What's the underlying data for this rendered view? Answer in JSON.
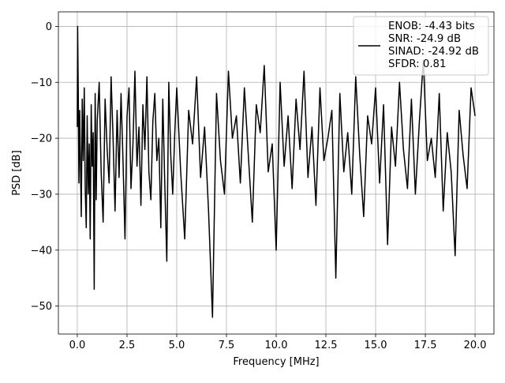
{
  "chart_data": {
    "type": "line",
    "title": "",
    "xlabel": "Frequency [MHz]",
    "ylabel": "PSD [dB]",
    "xlim": [
      -0.95,
      20.95
    ],
    "ylim": [
      -55.0,
      2.6
    ],
    "xticks": [
      0.0,
      2.5,
      5.0,
      7.5,
      10.0,
      12.5,
      15.0,
      17.5,
      20.0
    ],
    "xtick_labels": [
      "0.0",
      "2.5",
      "5.0",
      "7.5",
      "10.0",
      "12.5",
      "15.0",
      "17.5",
      "20.0"
    ],
    "yticks": [
      0,
      -10,
      -20,
      -30,
      -40,
      -50
    ],
    "ytick_labels": [
      "0",
      "−10",
      "−20",
      "−30",
      "−40",
      "−50"
    ],
    "grid": true,
    "legend_position": "top-right",
    "series": [
      {
        "name": "",
        "legend_lines": [
          "ENOB: -4.43 bits",
          "SNR: -24.9 dB",
          "SINAD: -24.92 dB",
          "SFDR: 0.81"
        ],
        "color": "#000000",
        "approximate": "dense noise floor between about -5 and -32 dB, centered near -18 dB",
        "x": [
          0.0,
          0.02,
          0.05,
          0.08,
          0.12,
          0.15,
          0.2,
          0.25,
          0.3,
          0.35,
          0.4,
          0.45,
          0.5,
          0.55,
          0.6,
          0.65,
          0.7,
          0.75,
          0.8,
          0.85,
          0.9,
          0.95,
          1.0,
          1.1,
          1.2,
          1.3,
          1.4,
          1.5,
          1.6,
          1.7,
          1.8,
          1.9,
          2.0,
          2.1,
          2.2,
          2.3,
          2.4,
          2.5,
          2.6,
          2.7,
          2.8,
          2.9,
          3.0,
          3.1,
          3.2,
          3.3,
          3.4,
          3.5,
          3.6,
          3.7,
          3.8,
          3.9,
          4.0,
          4.1,
          4.2,
          4.3,
          4.4,
          4.5,
          4.6,
          4.7,
          4.8,
          4.9,
          5.0,
          5.2,
          5.4,
          5.6,
          5.8,
          6.0,
          6.2,
          6.4,
          6.6,
          6.8,
          7.0,
          7.2,
          7.4,
          7.6,
          7.8,
          8.0,
          8.2,
          8.4,
          8.6,
          8.8,
          9.0,
          9.2,
          9.4,
          9.6,
          9.8,
          10.0,
          10.2,
          10.4,
          10.6,
          10.8,
          11.0,
          11.2,
          11.4,
          11.6,
          11.8,
          12.0,
          12.2,
          12.4,
          12.6,
          12.8,
          13.0,
          13.2,
          13.4,
          13.6,
          13.8,
          14.0,
          14.2,
          14.4,
          14.6,
          14.8,
          15.0,
          15.2,
          15.4,
          15.6,
          15.8,
          16.0,
          16.2,
          16.4,
          16.6,
          16.8,
          17.0,
          17.2,
          17.4,
          17.6,
          17.8,
          18.0,
          18.2,
          18.4,
          18.6,
          18.8,
          19.0,
          19.2,
          19.4,
          19.6,
          19.8,
          20.0
        ],
        "y": [
          -18,
          0,
          -12,
          -28,
          -15,
          -22,
          -34,
          -13,
          -24,
          -11,
          -29,
          -36,
          -16,
          -30,
          -21,
          -38,
          -14,
          -25,
          -19,
          -47,
          -12,
          -31,
          -17,
          -10,
          -26,
          -35,
          -13,
          -22,
          -28,
          -9,
          -20,
          -33,
          -15,
          -27,
          -12,
          -24,
          -38,
          -16,
          -11,
          -29,
          -21,
          -8,
          -25,
          -18,
          -32,
          -14,
          -22,
          -9,
          -26,
          -31,
          -17,
          -12,
          -24,
          -20,
          -36,
          -13,
          -28,
          -42,
          -10,
          -23,
          -30,
          -19,
          -11,
          -26,
          -38,
          -15,
          -21,
          -9,
          -27,
          -18,
          -33,
          -52,
          -12,
          -24,
          -30,
          -8,
          -20,
          -16,
          -28,
          -11,
          -23,
          -35,
          -14,
          -19,
          -7,
          -26,
          -21,
          -40,
          -10,
          -25,
          -16,
          -29,
          -13,
          -22,
          -8,
          -27,
          -18,
          -32,
          -11,
          -24,
          -20,
          -15,
          -45,
          -12,
          -26,
          -19,
          -30,
          -9,
          -23,
          -34,
          -16,
          -21,
          -11,
          -28,
          -14,
          -39,
          -18,
          -25,
          -10,
          -22,
          -29,
          -13,
          -30,
          -17,
          -6,
          -24,
          -20,
          -27,
          -12,
          -33,
          -19,
          -26,
          -41,
          -15,
          -23,
          -29,
          -11,
          -16
        ]
      }
    ]
  }
}
